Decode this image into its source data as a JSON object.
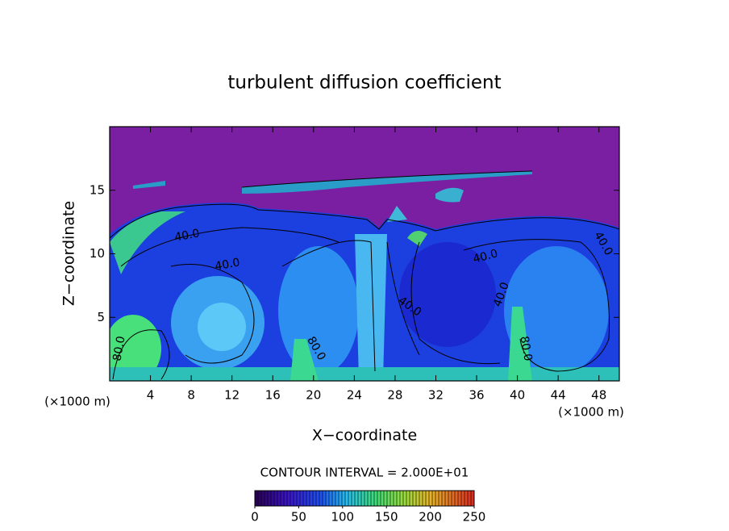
{
  "chart_data": {
    "type": "contour",
    "title": "turbulent diffusion coefficient",
    "xlabel": "X−coordinate",
    "ylabel": "Z−coordinate",
    "x_unit": "(×1000 m)",
    "xlim": [
      0,
      50
    ],
    "xticks": [
      4,
      8,
      12,
      16,
      20,
      24,
      28,
      32,
      36,
      40,
      44,
      48
    ],
    "ylim": [
      0,
      20
    ],
    "yticks": [
      5,
      10,
      15
    ],
    "contour_labels": [
      "40.0",
      "40.0",
      "40.0",
      "40.0",
      "40.0",
      "40.0",
      "80.0",
      "80.0",
      "80.0"
    ],
    "contour_interval": "CONTOUR INTERVAL = 2.000E+01",
    "colorbar": {
      "lim": [
        0,
        250
      ],
      "ticks": [
        0,
        50,
        100,
        150,
        200,
        250
      ]
    }
  }
}
